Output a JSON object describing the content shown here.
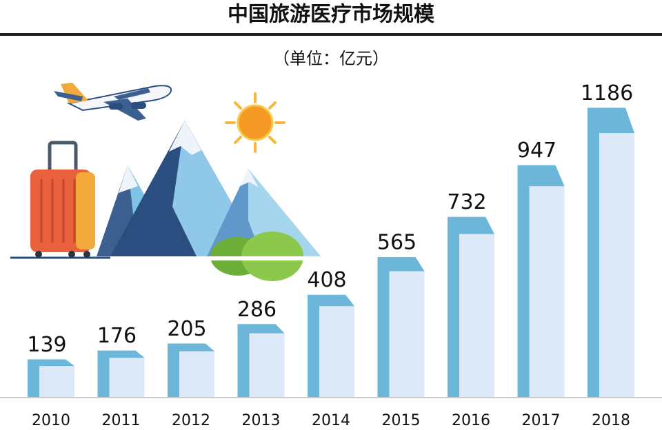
{
  "chart_data": {
    "type": "bar",
    "title": "中国旅游医疗市场规模",
    "subtitle": "（单位：亿元）",
    "categories": [
      "2010",
      "2011",
      "2012",
      "2013",
      "2014",
      "2015",
      "2016",
      "2017",
      "2018"
    ],
    "values": [
      139,
      176,
      205,
      286,
      408,
      565,
      732,
      947,
      1186
    ],
    "color": "#6bb6d9",
    "face_color": "#dde9f8"
  }
}
